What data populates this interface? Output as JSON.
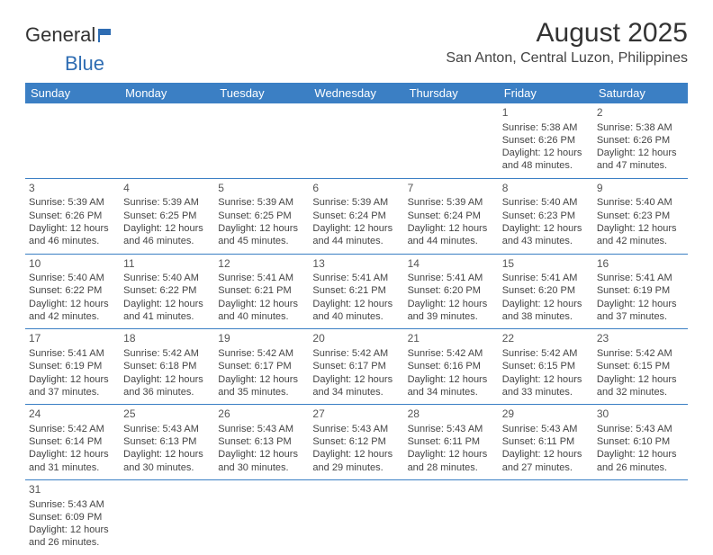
{
  "logo": {
    "text1": "General",
    "text2": "Blue"
  },
  "title": "August 2025",
  "location": "San Anton, Central Luzon, Philippines",
  "colors": {
    "header_bg": "#3b7fc4",
    "header_text": "#ffffff",
    "divider": "#3b7fc4",
    "text": "#444444",
    "background": "#ffffff"
  },
  "daysOfWeek": [
    "Sunday",
    "Monday",
    "Tuesday",
    "Wednesday",
    "Thursday",
    "Friday",
    "Saturday"
  ],
  "weeks": [
    [
      null,
      null,
      null,
      null,
      null,
      {
        "n": "1",
        "sr": "5:38 AM",
        "ss": "6:26 PM",
        "dl": "12 hours and 48 minutes."
      },
      {
        "n": "2",
        "sr": "5:38 AM",
        "ss": "6:26 PM",
        "dl": "12 hours and 47 minutes."
      }
    ],
    [
      {
        "n": "3",
        "sr": "5:39 AM",
        "ss": "6:26 PM",
        "dl": "12 hours and 46 minutes."
      },
      {
        "n": "4",
        "sr": "5:39 AM",
        "ss": "6:25 PM",
        "dl": "12 hours and 46 minutes."
      },
      {
        "n": "5",
        "sr": "5:39 AM",
        "ss": "6:25 PM",
        "dl": "12 hours and 45 minutes."
      },
      {
        "n": "6",
        "sr": "5:39 AM",
        "ss": "6:24 PM",
        "dl": "12 hours and 44 minutes."
      },
      {
        "n": "7",
        "sr": "5:39 AM",
        "ss": "6:24 PM",
        "dl": "12 hours and 44 minutes."
      },
      {
        "n": "8",
        "sr": "5:40 AM",
        "ss": "6:23 PM",
        "dl": "12 hours and 43 minutes."
      },
      {
        "n": "9",
        "sr": "5:40 AM",
        "ss": "6:23 PM",
        "dl": "12 hours and 42 minutes."
      }
    ],
    [
      {
        "n": "10",
        "sr": "5:40 AM",
        "ss": "6:22 PM",
        "dl": "12 hours and 42 minutes."
      },
      {
        "n": "11",
        "sr": "5:40 AM",
        "ss": "6:22 PM",
        "dl": "12 hours and 41 minutes."
      },
      {
        "n": "12",
        "sr": "5:41 AM",
        "ss": "6:21 PM",
        "dl": "12 hours and 40 minutes."
      },
      {
        "n": "13",
        "sr": "5:41 AM",
        "ss": "6:21 PM",
        "dl": "12 hours and 40 minutes."
      },
      {
        "n": "14",
        "sr": "5:41 AM",
        "ss": "6:20 PM",
        "dl": "12 hours and 39 minutes."
      },
      {
        "n": "15",
        "sr": "5:41 AM",
        "ss": "6:20 PM",
        "dl": "12 hours and 38 minutes."
      },
      {
        "n": "16",
        "sr": "5:41 AM",
        "ss": "6:19 PM",
        "dl": "12 hours and 37 minutes."
      }
    ],
    [
      {
        "n": "17",
        "sr": "5:41 AM",
        "ss": "6:19 PM",
        "dl": "12 hours and 37 minutes."
      },
      {
        "n": "18",
        "sr": "5:42 AM",
        "ss": "6:18 PM",
        "dl": "12 hours and 36 minutes."
      },
      {
        "n": "19",
        "sr": "5:42 AM",
        "ss": "6:17 PM",
        "dl": "12 hours and 35 minutes."
      },
      {
        "n": "20",
        "sr": "5:42 AM",
        "ss": "6:17 PM",
        "dl": "12 hours and 34 minutes."
      },
      {
        "n": "21",
        "sr": "5:42 AM",
        "ss": "6:16 PM",
        "dl": "12 hours and 34 minutes."
      },
      {
        "n": "22",
        "sr": "5:42 AM",
        "ss": "6:15 PM",
        "dl": "12 hours and 33 minutes."
      },
      {
        "n": "23",
        "sr": "5:42 AM",
        "ss": "6:15 PM",
        "dl": "12 hours and 32 minutes."
      }
    ],
    [
      {
        "n": "24",
        "sr": "5:42 AM",
        "ss": "6:14 PM",
        "dl": "12 hours and 31 minutes."
      },
      {
        "n": "25",
        "sr": "5:43 AM",
        "ss": "6:13 PM",
        "dl": "12 hours and 30 minutes."
      },
      {
        "n": "26",
        "sr": "5:43 AM",
        "ss": "6:13 PM",
        "dl": "12 hours and 30 minutes."
      },
      {
        "n": "27",
        "sr": "5:43 AM",
        "ss": "6:12 PM",
        "dl": "12 hours and 29 minutes."
      },
      {
        "n": "28",
        "sr": "5:43 AM",
        "ss": "6:11 PM",
        "dl": "12 hours and 28 minutes."
      },
      {
        "n": "29",
        "sr": "5:43 AM",
        "ss": "6:11 PM",
        "dl": "12 hours and 27 minutes."
      },
      {
        "n": "30",
        "sr": "5:43 AM",
        "ss": "6:10 PM",
        "dl": "12 hours and 26 minutes."
      }
    ],
    [
      {
        "n": "31",
        "sr": "5:43 AM",
        "ss": "6:09 PM",
        "dl": "12 hours and 26 minutes."
      },
      null,
      null,
      null,
      null,
      null,
      null
    ]
  ],
  "labels": {
    "sunrise": "Sunrise:",
    "sunset": "Sunset:",
    "daylight": "Daylight:"
  }
}
